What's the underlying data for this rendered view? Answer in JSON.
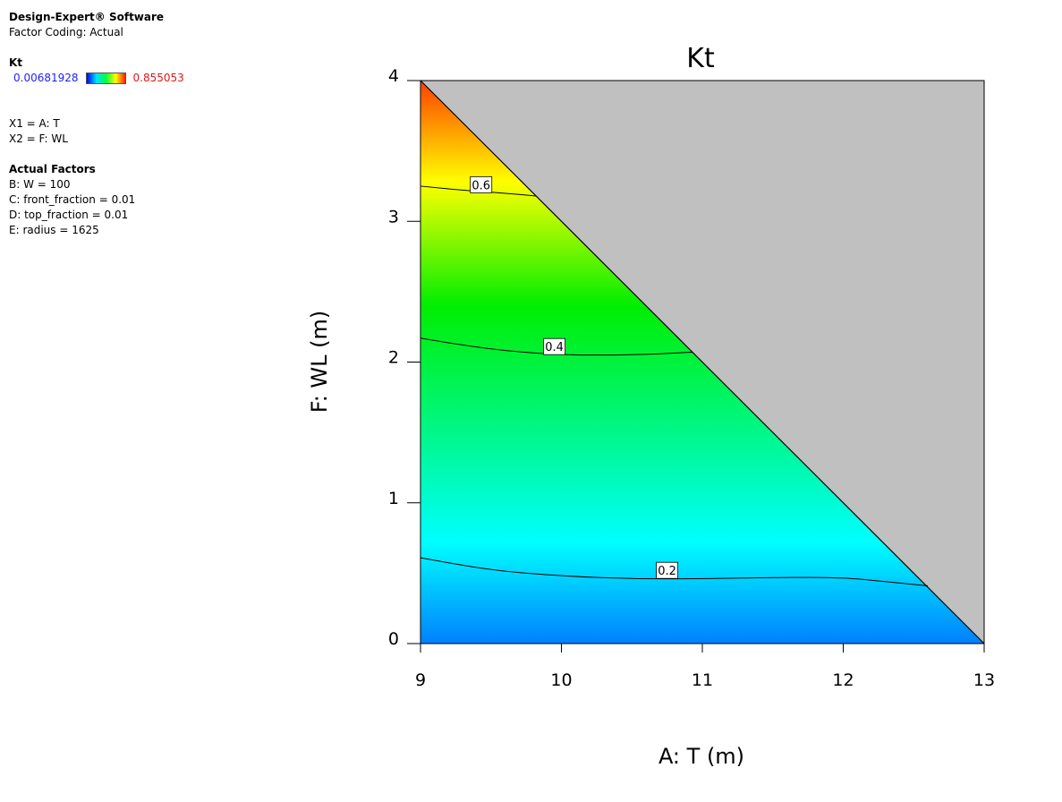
{
  "software": {
    "title": "Design-Expert® Software",
    "coding": "Factor Coding: Actual"
  },
  "response": {
    "name": "Kt",
    "min": "0.00681928",
    "max": "0.855053"
  },
  "factors": {
    "x1": "X1 = A: T",
    "x2": "X2 = F: WL"
  },
  "actual_factors": {
    "heading": "Actual Factors",
    "items": [
      "B: W = 100",
      "C: front_fraction = 0.01",
      "D: top_fraction = 0.01",
      "E: radius = 1625"
    ]
  },
  "colors": {
    "low": "#0080ff",
    "mid_low": "#00ffff",
    "mid": "#00ee00",
    "high": "#ffff00",
    "top": "#ff4000",
    "excluded": "#c0c0c0"
  },
  "chart_data": {
    "type": "contour",
    "title": "Kt",
    "xlabel": "A: T (m)",
    "ylabel": "F: WL (m)",
    "xlim": [
      9,
      13
    ],
    "ylim": [
      0,
      4
    ],
    "xticks": [
      "9",
      "10",
      "11",
      "12",
      "13"
    ],
    "yticks": [
      "0",
      "1",
      "2",
      "3",
      "4"
    ],
    "constraint": "region above line from (9,4) to (13,0) is excluded",
    "contours": [
      {
        "label": "0.2",
        "label_at": [
          10.75,
          0.52
        ],
        "points": [
          [
            9,
            0.61
          ],
          [
            9.5,
            0.52
          ],
          [
            10,
            0.48
          ],
          [
            10.5,
            0.46
          ],
          [
            11,
            0.46
          ],
          [
            11.5,
            0.47
          ],
          [
            12,
            0.47
          ],
          [
            12.3,
            0.44
          ],
          [
            12.6,
            0.41
          ]
        ]
      },
      {
        "label": "0.4",
        "label_at": [
          9.95,
          2.11
        ],
        "points": [
          [
            9,
            2.17
          ],
          [
            9.3,
            2.12
          ],
          [
            9.6,
            2.08
          ],
          [
            10,
            2.05
          ],
          [
            10.5,
            2.05
          ],
          [
            10.93,
            2.07
          ]
        ]
      },
      {
        "label": "0.6",
        "label_at": [
          9.43,
          3.26
        ],
        "points": [
          [
            9,
            3.25
          ],
          [
            9.3,
            3.22
          ],
          [
            9.6,
            3.2
          ],
          [
            9.82,
            3.18
          ]
        ]
      }
    ]
  }
}
